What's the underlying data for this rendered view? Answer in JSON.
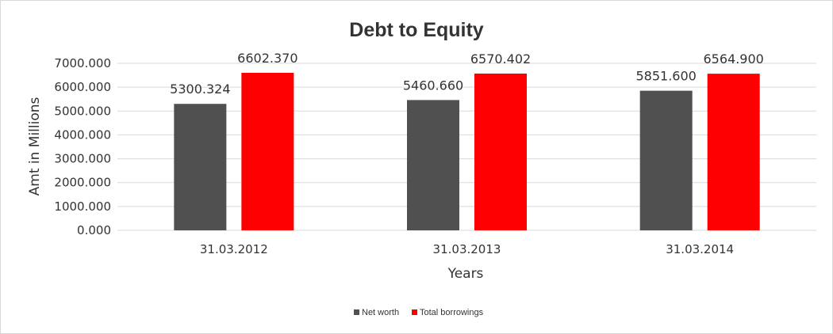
{
  "chart_data": {
    "type": "bar",
    "title": "Debt to Equity",
    "xlabel": "Years",
    "ylabel": "Amt in Millions",
    "categories": [
      "31.03.2012",
      "31.03.2013",
      "31.03.2014"
    ],
    "series": [
      {
        "name": "Net worth",
        "color": "#505050",
        "values": [
          5300.324,
          5460.66,
          5851.6
        ]
      },
      {
        "name": "Total borrowings",
        "color": "#ff0000",
        "values": [
          6602.37,
          6570.402,
          6564.9
        ]
      }
    ],
    "ylim": [
      0,
      7000
    ],
    "yticks": [
      "0.000",
      "1000.000",
      "2000.000",
      "3000.000",
      "4000.000",
      "5000.000",
      "6000.000",
      "7000.000"
    ],
    "data_labels": [
      [
        "5300.324",
        "5460.660",
        "5851.600"
      ],
      [
        "6602.370",
        "6570.402",
        "6564.900"
      ]
    ],
    "grid": true,
    "legend_position": "bottom"
  }
}
